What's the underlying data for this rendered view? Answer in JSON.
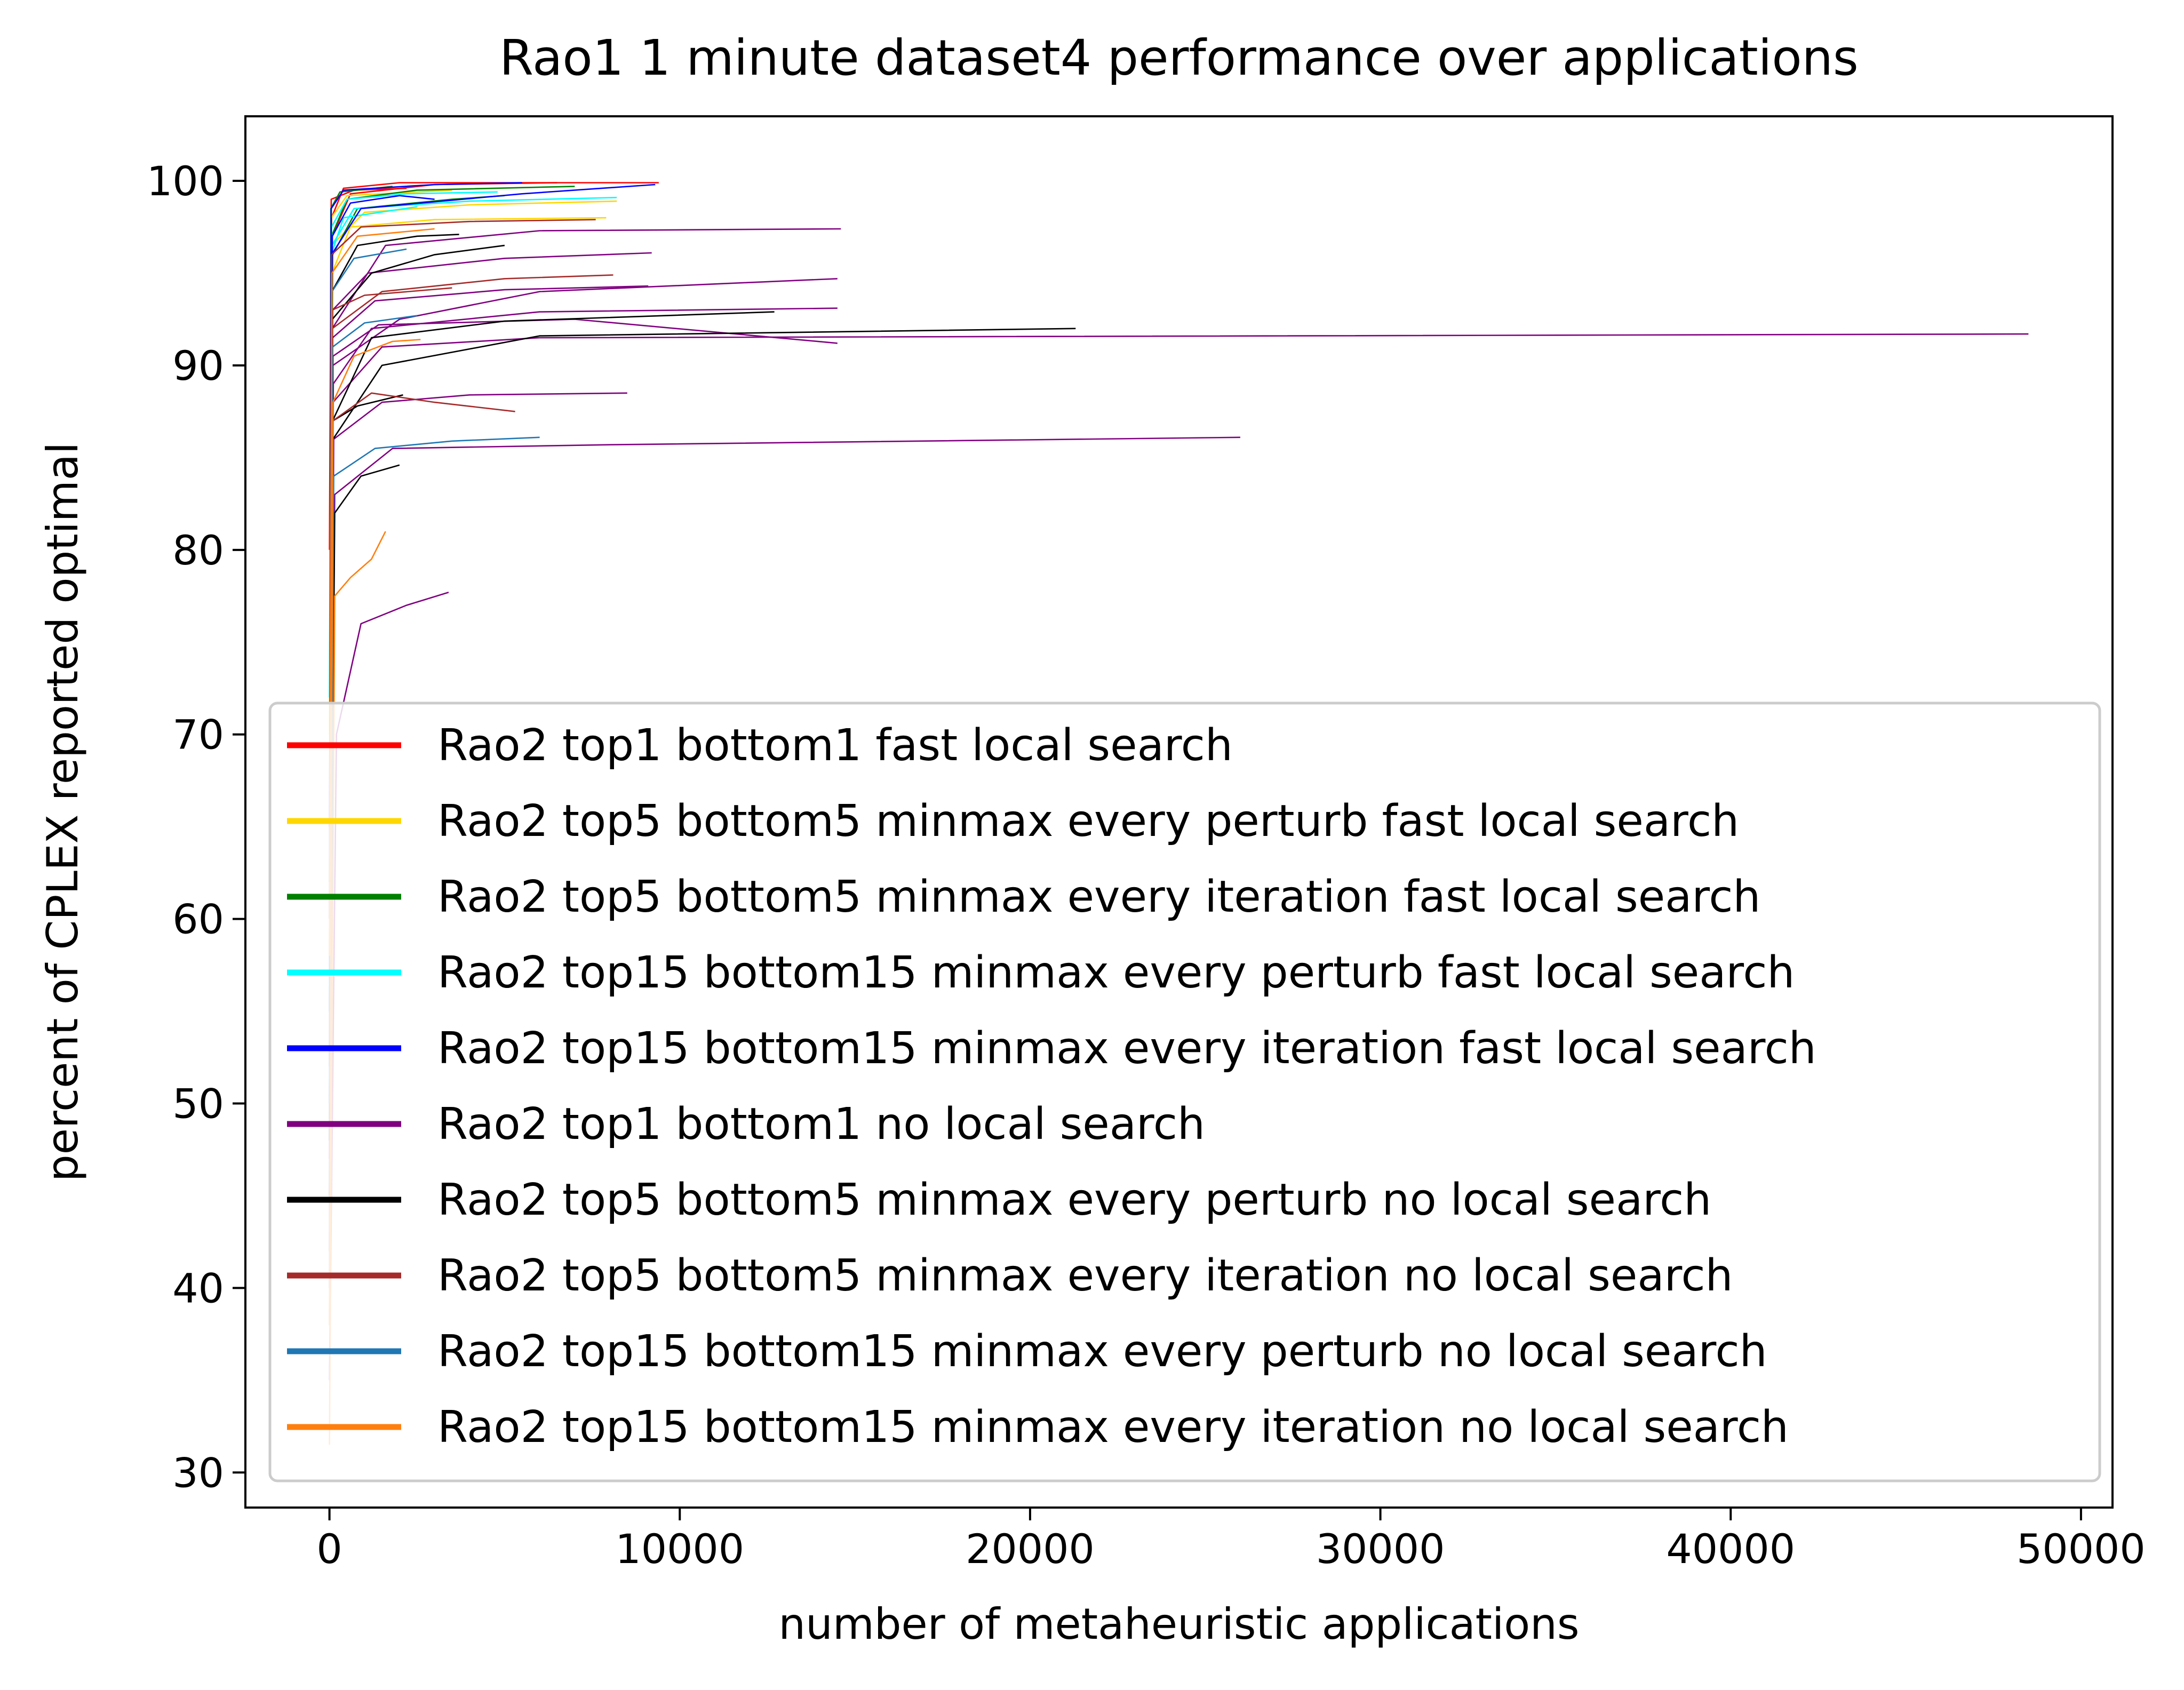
{
  "chart_data": {
    "type": "line",
    "title": "Rao1 1 minute dataset4 performance over applications",
    "xlabel": "number of metaheuristic applications",
    "ylabel": "percent of CPLEX reported optimal",
    "xlim": [
      -2400,
      50900
    ],
    "ylim": [
      28.1,
      103.5
    ],
    "xticks": [
      0,
      10000,
      20000,
      30000,
      40000,
      50000
    ],
    "yticks": [
      30,
      40,
      50,
      60,
      70,
      80,
      90,
      100
    ],
    "grid": false,
    "legend_position": "lower-right",
    "series": [
      {
        "name": "Rao2 top1 bottom1 fast local search",
        "color": "#ff0000",
        "runs": [
          [
            [
              0,
              60
            ],
            [
              60,
              98
            ],
            [
              400,
              99.6
            ],
            [
              2000,
              99.9
            ],
            [
              9400,
              99.9
            ]
          ],
          [
            [
              0,
              55
            ],
            [
              80,
              97
            ],
            [
              600,
              99.3
            ],
            [
              3000,
              99.8
            ],
            [
              6500,
              99.9
            ]
          ],
          [
            [
              0,
              80
            ],
            [
              50,
              99
            ],
            [
              700,
              99.5
            ],
            [
              2200,
              99.6
            ]
          ]
        ]
      },
      {
        "name": "Rao2 top5 bottom5 minmax every perturb fast local search",
        "color": "#ffd700",
        "runs": [
          [
            [
              0,
              60
            ],
            [
              70,
              95
            ],
            [
              600,
              97.5
            ],
            [
              3000,
              97.9
            ],
            [
              7900,
              98.0
            ]
          ],
          [
            [
              0,
              70
            ],
            [
              60,
              96.5
            ],
            [
              1000,
              98.3
            ],
            [
              4000,
              98.7
            ],
            [
              8200,
              98.9
            ]
          ],
          [
            [
              0,
              65
            ],
            [
              50,
              98
            ],
            [
              500,
              99.2
            ],
            [
              3500,
              99.5
            ]
          ]
        ]
      },
      {
        "name": "Rao2 top5 bottom5 minmax every iteration fast local search",
        "color": "#008000",
        "runs": [
          [
            [
              0,
              58
            ],
            [
              60,
              97
            ],
            [
              500,
              99
            ],
            [
              2500,
              99.5
            ],
            [
              7000,
              99.7
            ]
          ],
          [
            [
              0,
              62
            ],
            [
              90,
              96
            ],
            [
              800,
              98.5
            ],
            [
              3500,
              99.0
            ],
            [
              5000,
              99.2
            ]
          ],
          [
            [
              0,
              50
            ],
            [
              40,
              98.5
            ],
            [
              300,
              99.4
            ],
            [
              1800,
              99.7
            ]
          ]
        ]
      },
      {
        "name": "Rao2 top15 bottom15 minmax every perturb fast local search",
        "color": "#00ffff",
        "runs": [
          [
            [
              0,
              60
            ],
            [
              70,
              96.5
            ],
            [
              700,
              98.5
            ],
            [
              4000,
              98.9
            ],
            [
              8200,
              99.1
            ]
          ],
          [
            [
              0,
              72
            ],
            [
              60,
              97.5
            ],
            [
              500,
              99
            ],
            [
              2200,
              99.3
            ],
            [
              4800,
              99.4
            ]
          ],
          [
            [
              0,
              55
            ],
            [
              50,
              96
            ],
            [
              400,
              98
            ],
            [
              2500,
              98.6
            ]
          ]
        ]
      },
      {
        "name": "Rao2 top15 bottom15 minmax every iteration fast local search",
        "color": "#0000ff",
        "runs": [
          [
            [
              0,
              57
            ],
            [
              60,
              96
            ],
            [
              900,
              98.5
            ],
            [
              5500,
              99.3
            ],
            [
              9300,
              99.8
            ]
          ],
          [
            [
              0,
              65
            ],
            [
              80,
              97
            ],
            [
              600,
              98.8
            ],
            [
              2000,
              99.2
            ],
            [
              3000,
              99.0
            ]
          ],
          [
            [
              0,
              60
            ],
            [
              50,
              98.5
            ],
            [
              400,
              99.5
            ],
            [
              3000,
              99.8
            ],
            [
              5500,
              99.9
            ]
          ]
        ]
      },
      {
        "name": "Rao2 top1 bottom1 no local search",
        "color": "#800080",
        "runs": [
          [
            [
              0,
              40
            ],
            [
              100,
              88
            ],
            [
              1500,
              91
            ],
            [
              6000,
              91.5
            ],
            [
              48500,
              91.7
            ]
          ],
          [
            [
              0,
              45
            ],
            [
              150,
              83
            ],
            [
              1800,
              85.5
            ],
            [
              8000,
              85.7
            ],
            [
              26000,
              86.1
            ]
          ],
          [
            [
              0,
              50
            ],
            [
              100,
              90
            ],
            [
              2000,
              92.5
            ],
            [
              6000,
              94
            ],
            [
              14500,
              94.7
            ]
          ],
          [
            [
              0,
              35
            ],
            [
              200,
              70
            ],
            [
              900,
              76
            ],
            [
              2200,
              77
            ],
            [
              3400,
              77.7
            ]
          ],
          [
            [
              0,
              55
            ],
            [
              80,
              92
            ],
            [
              1600,
              96.5
            ],
            [
              6000,
              97.3
            ],
            [
              14600,
              97.4
            ]
          ],
          [
            [
              0,
              48
            ],
            [
              120,
              86
            ],
            [
              1500,
              88
            ],
            [
              4000,
              88.4
            ],
            [
              8500,
              88.5
            ]
          ],
          [
            [
              0,
              52
            ],
            [
              90,
              91.5
            ],
            [
              1300,
              93.5
            ],
            [
              5000,
              94.1
            ],
            [
              9100,
              94.3
            ]
          ],
          [
            [
              0,
              47
            ],
            [
              110,
              89
            ],
            [
              1200,
              92
            ],
            [
              6000,
              92.9
            ],
            [
              14500,
              93.1
            ]
          ],
          [
            [
              0,
              50
            ],
            [
              100,
              90.5
            ],
            [
              1400,
              92.2
            ],
            [
              7000,
              92.5
            ],
            [
              14500,
              91.2
            ]
          ],
          [
            [
              0,
              53
            ],
            [
              90,
              93
            ],
            [
              1100,
              95
            ],
            [
              5000,
              95.8
            ],
            [
              9200,
              96.1
            ]
          ]
        ]
      },
      {
        "name": "Rao2 top5 bottom5 minmax every perturb no local search",
        "color": "#000000",
        "runs": [
          [
            [
              0,
              38
            ],
            [
              100,
              86
            ],
            [
              1500,
              90
            ],
            [
              6000,
              91.6
            ],
            [
              21300,
              92.0
            ]
          ],
          [
            [
              0,
              42
            ],
            [
              90,
              87
            ],
            [
              1200,
              91.5
            ],
            [
              5000,
              92.4
            ],
            [
              12700,
              92.9
            ]
          ],
          [
            [
              0,
              45
            ],
            [
              150,
              82
            ],
            [
              900,
              84
            ],
            [
              2000,
              84.6
            ]
          ],
          [
            [
              0,
              50
            ],
            [
              80,
              92.5
            ],
            [
              1200,
              95
            ],
            [
              3000,
              96.0
            ],
            [
              5000,
              96.5
            ]
          ],
          [
            [
              0,
              48
            ],
            [
              100,
              87
            ],
            [
              800,
              87.8
            ],
            [
              2100,
              88.4
            ]
          ],
          [
            [
              0,
              55
            ],
            [
              70,
              94
            ],
            [
              800,
              96.5
            ],
            [
              2500,
              97.0
            ],
            [
              3700,
              97.1
            ]
          ]
        ]
      },
      {
        "name": "Rao2 top5 bottom5 minmax every iteration no local search",
        "color": "#a52a2a",
        "runs": [
          [
            [
              0,
              42
            ],
            [
              100,
              87
            ],
            [
              1200,
              88.5
            ],
            [
              3000,
              88
            ],
            [
              5300,
              87.5
            ]
          ],
          [
            [
              0,
              50
            ],
            [
              80,
              92
            ],
            [
              1500,
              94
            ],
            [
              5000,
              94.7
            ],
            [
              8100,
              94.9
            ]
          ],
          [
            [
              0,
              60
            ],
            [
              60,
              96
            ],
            [
              900,
              97.5
            ],
            [
              4000,
              97.8
            ],
            [
              7600,
              97.9
            ]
          ],
          [
            [
              0,
              52
            ],
            [
              80,
              93
            ],
            [
              1000,
              93.8
            ],
            [
              3500,
              94.2
            ]
          ]
        ]
      },
      {
        "name": "Rao2 top15 bottom15 minmax every perturb no local search",
        "color": "#1f77b4",
        "runs": [
          [
            [
              0,
              40
            ],
            [
              120,
              84
            ],
            [
              1300,
              85.5
            ],
            [
              3500,
              85.9
            ],
            [
              6000,
              86.1
            ]
          ],
          [
            [
              0,
              55
            ],
            [
              70,
              94
            ],
            [
              700,
              95.8
            ],
            [
              2200,
              96.3
            ]
          ],
          [
            [
              0,
              50
            ],
            [
              90,
              91
            ],
            [
              1000,
              92.3
            ],
            [
              2500,
              92.7
            ]
          ]
        ]
      },
      {
        "name": "Rao2 top15 bottom15 minmax every iteration no local search",
        "color": "#ff7f0e",
        "runs": [
          [
            [
              0,
              31.5
            ],
            [
              150,
              77.5
            ],
            [
              600,
              78.5
            ],
            [
              1200,
              79.5
            ],
            [
              1600,
              81
            ]
          ],
          [
            [
              0,
              38
            ],
            [
              100,
              88
            ],
            [
              700,
              90.5
            ],
            [
              1800,
              91.3
            ],
            [
              2600,
              91.4
            ]
          ],
          [
            [
              0,
              58
            ],
            [
              70,
              95
            ],
            [
              800,
              97
            ],
            [
              3000,
              97.4
            ]
          ]
        ]
      }
    ]
  }
}
